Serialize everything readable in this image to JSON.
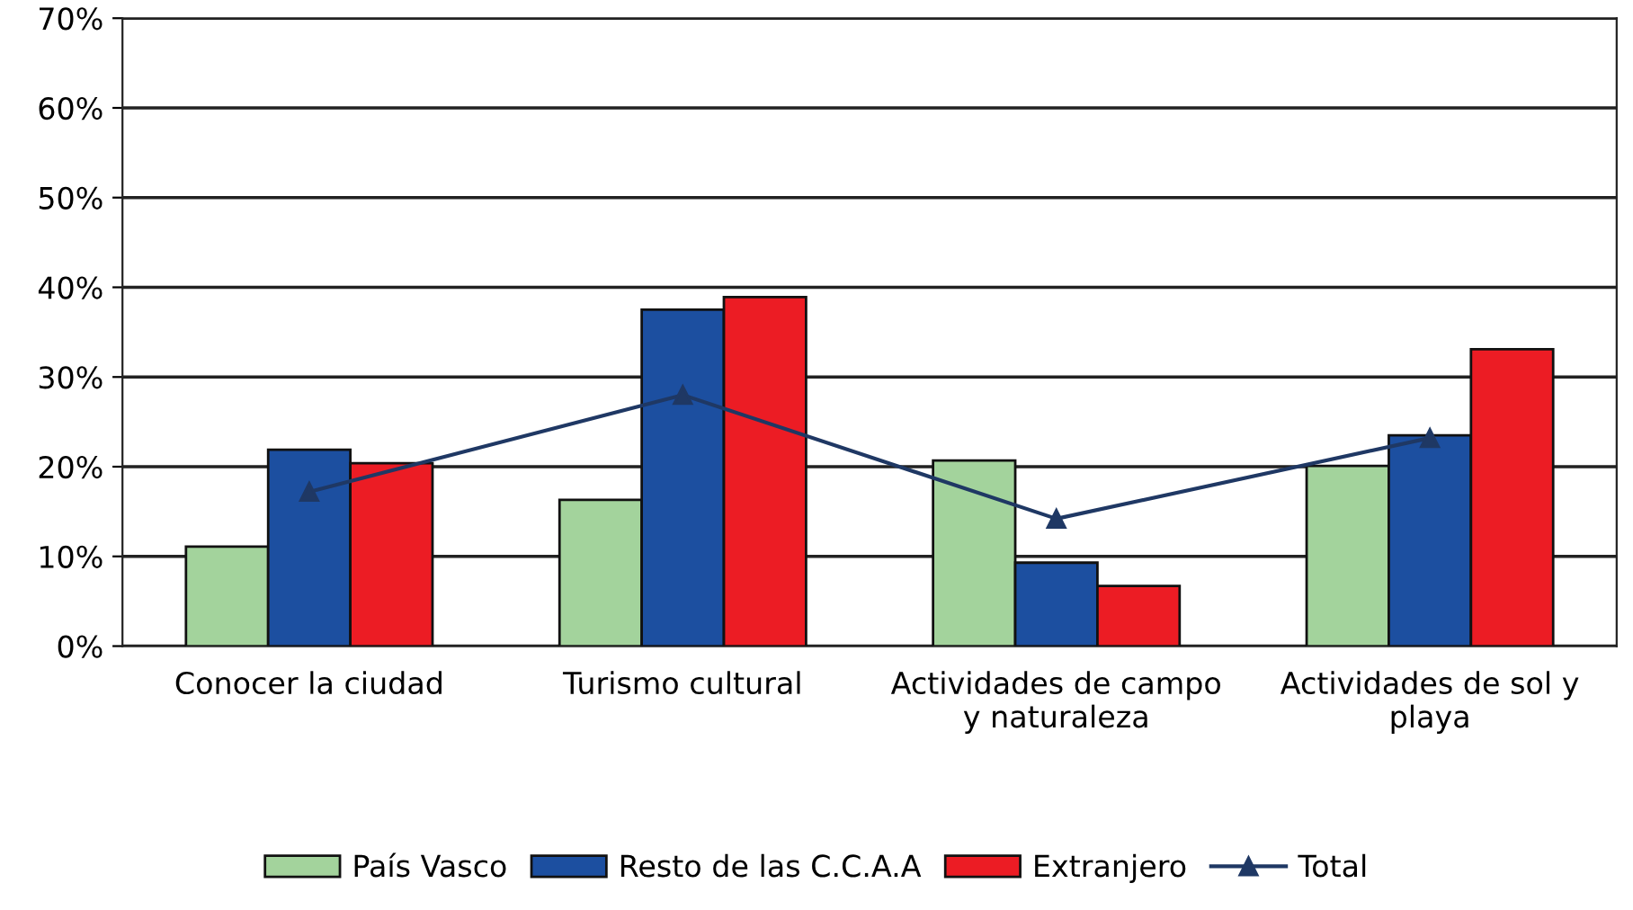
{
  "chart_data": {
    "type": "bar",
    "categories": [
      "Conocer la ciudad",
      "Turismo cultural",
      "Actividades de campo\ny naturaleza",
      "Actividades de sol y\nplaya"
    ],
    "series": [
      {
        "name": "País Vasco",
        "color": "#a3d39c",
        "values": [
          11.1,
          16.3,
          20.7,
          20.1
        ]
      },
      {
        "name": "Resto de las C.C.A.A",
        "color": "#1c4fa0",
        "values": [
          21.9,
          37.5,
          9.3,
          23.5
        ]
      },
      {
        "name": "Extranjero",
        "color": "#ec1c24",
        "values": [
          20.4,
          38.9,
          6.7,
          33.1
        ]
      },
      {
        "name": "Total",
        "color": "#1f3864",
        "type": "line",
        "marker": "triangle",
        "values": [
          17.2,
          28,
          14.2,
          23.2
        ]
      }
    ],
    "ylim": [
      0,
      70
    ],
    "yticks": [
      {
        "value": 0,
        "label": "0%"
      },
      {
        "value": 10,
        "label": "10%"
      },
      {
        "value": 20,
        "label": "20%"
      },
      {
        "value": 30,
        "label": "30%"
      },
      {
        "value": 40,
        "label": "40%"
      },
      {
        "value": 50,
        "label": "50%"
      },
      {
        "value": 60,
        "label": "60%"
      },
      {
        "value": 70,
        "label": "70%"
      }
    ],
    "grid": "y",
    "legend": "bottom"
  }
}
